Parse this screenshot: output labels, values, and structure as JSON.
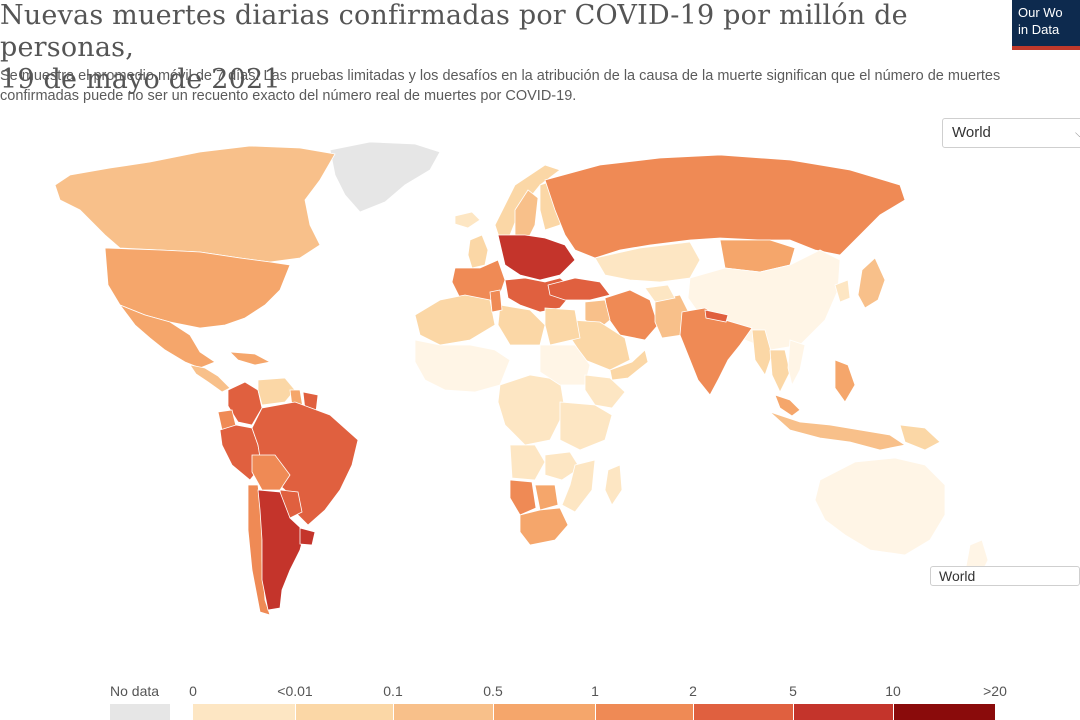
{
  "title_line1": "Nuevas muertes diarias confirmadas por COVID-19 por millón de personas,",
  "title_line2": "19 de mayo de 2021",
  "subtitle": "Se muestra el promedio móvil de 7 días. Las pruebas limitadas y los desafíos en la atribución de la causa de la muerte significan que el número de muertes confirmadas puede no ser un recuento exacto del número real de muertes por COVID-19.",
  "logo": {
    "line1": "Our Wo",
    "line2": "in Data"
  },
  "region_select": {
    "value": "World"
  },
  "world_button": {
    "label": "World"
  },
  "legend": {
    "nodata_label": "No data",
    "ticks": [
      "0",
      "<0.01",
      "0.1",
      "0.5",
      "1",
      "2",
      "5",
      "10",
      ">20"
    ],
    "colors": [
      "#fff5e6",
      "#fde6c3",
      "#fbd7a6",
      "#f8c08a",
      "#f5a66b",
      "#ef8a55",
      "#e0603f",
      "#c4342b",
      "#8a0b0b"
    ],
    "nodata_color": "#e6e6e6"
  },
  "regions": [
    {
      "name": "Greenland",
      "level": -1
    },
    {
      "name": "Canada",
      "level": 3
    },
    {
      "name": "United States",
      "level": 4
    },
    {
      "name": "Mexico",
      "level": 4
    },
    {
      "name": "Central America",
      "level": 3
    },
    {
      "name": "Caribbean",
      "level": 4
    },
    {
      "name": "Colombia",
      "level": 6
    },
    {
      "name": "Venezuela",
      "level": 2
    },
    {
      "name": "Guyana",
      "level": 4
    },
    {
      "name": "Suriname",
      "level": 6
    },
    {
      "name": "Ecuador",
      "level": 5
    },
    {
      "name": "Peru",
      "level": 6
    },
    {
      "name": "Brazil",
      "level": 6
    },
    {
      "name": "Bolivia",
      "level": 5
    },
    {
      "name": "Paraguay",
      "level": 6
    },
    {
      "name": "Chile",
      "level": 5
    },
    {
      "name": "Argentina",
      "level": 7
    },
    {
      "name": "Uruguay",
      "level": 7
    },
    {
      "name": "Iceland",
      "level": 1
    },
    {
      "name": "Norway",
      "level": 2
    },
    {
      "name": "Sweden",
      "level": 3
    },
    {
      "name": "Finland",
      "level": 2
    },
    {
      "name": "United Kingdom",
      "level": 2
    },
    {
      "name": "Western Europe",
      "level": 5
    },
    {
      "name": "Central Europe",
      "level": 7
    },
    {
      "name": "Balkans",
      "level": 6
    },
    {
      "name": "Russia",
      "level": 5
    },
    {
      "name": "Kazakhstan",
      "level": 1
    },
    {
      "name": "Mongolia",
      "level": 4
    },
    {
      "name": "China",
      "level": 0
    },
    {
      "name": "Japan",
      "level": 3
    },
    {
      "name": "Korea",
      "level": 1
    },
    {
      "name": "Turkey",
      "level": 6
    },
    {
      "name": "Iran",
      "level": 5
    },
    {
      "name": "Iraq",
      "level": 3
    },
    {
      "name": "Saudi Arabia",
      "level": 2
    },
    {
      "name": "Arabian Peninsula South",
      "level": 2
    },
    {
      "name": "Pakistan",
      "level": 3
    },
    {
      "name": "Afghanistan",
      "level": 1
    },
    {
      "name": "India",
      "level": 5
    },
    {
      "name": "Nepal",
      "level": 6
    },
    {
      "name": "Myanmar",
      "level": 2
    },
    {
      "name": "Thailand",
      "level": 2
    },
    {
      "name": "Vietnam",
      "level": 0
    },
    {
      "name": "Malaysia",
      "level": 4
    },
    {
      "name": "Indonesia",
      "level": 3
    },
    {
      "name": "Philippines",
      "level": 4
    },
    {
      "name": "Papua New Guinea",
      "level": 2
    },
    {
      "name": "Australia",
      "level": 0
    },
    {
      "name": "New Zealand",
      "level": 0
    },
    {
      "name": "North Africa West",
      "level": 2
    },
    {
      "name": "Libya",
      "level": 2
    },
    {
      "name": "Egypt",
      "level": 2
    },
    {
      "name": "Tunisia",
      "level": 5
    },
    {
      "name": "West Africa",
      "level": 0
    },
    {
      "name": "Central Africa",
      "level": 1
    },
    {
      "name": "Sudan",
      "level": 0
    },
    {
      "name": "Ethiopia",
      "level": 1
    },
    {
      "name": "East Africa",
      "level": 1
    },
    {
      "name": "Angola",
      "level": 1
    },
    {
      "name": "Zambia",
      "level": 1
    },
    {
      "name": "Namibia",
      "level": 5
    },
    {
      "name": "Botswana",
      "level": 4
    },
    {
      "name": "South Africa",
      "level": 4
    },
    {
      "name": "Mozambique",
      "level": 1
    },
    {
      "name": "Madagascar",
      "level": 1
    }
  ]
}
